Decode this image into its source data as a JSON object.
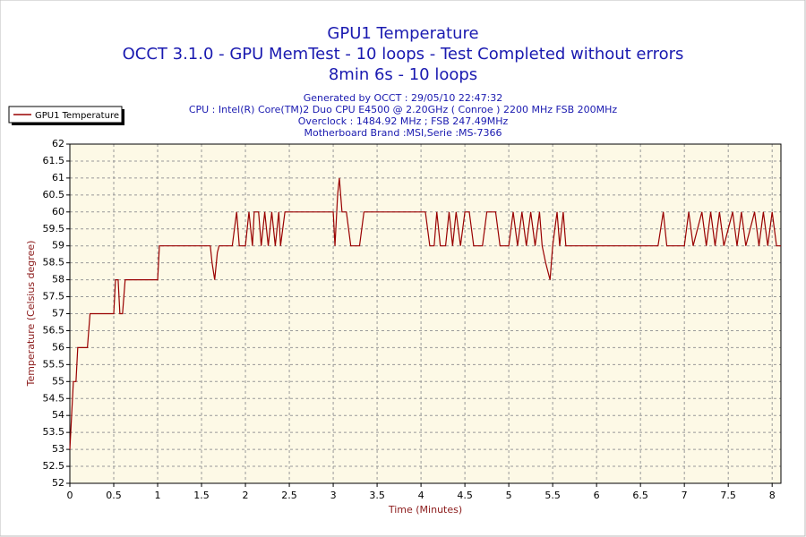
{
  "chart_data": {
    "type": "line",
    "title": "GPU1 Temperature",
    "subtitle": [
      "OCCT 3.1.0 - GPU MemTest - 10 loops - Test Completed without errors",
      "8min 6s - 10 loops"
    ],
    "notes": [
      "Generated by OCCT : 29/05/10 22:47:32",
      "CPU : Intel(R) Core(TM)2 Duo CPU E4500 @ 2.20GHz ( Conroe ) 2200 MHz FSB 200MHz",
      "Overclock : 1484.92 MHz ; FSB 247.49MHz",
      "Motherboard Brand :MSI,Serie :MS-7366"
    ],
    "x_label": "Time (Minutes)",
    "y_label": "Temperature (Celsius degree)",
    "legend": "top-left",
    "grid": true,
    "xlim": [
      0,
      8.1
    ],
    "ylim": [
      52,
      62
    ],
    "xticks": [
      0,
      0.5,
      1,
      1.5,
      2,
      2.5,
      3,
      3.5,
      4,
      4.5,
      5,
      5.5,
      6,
      6.5,
      7,
      7.5,
      8
    ],
    "yticks": [
      52,
      52.5,
      53,
      53.5,
      54,
      54.5,
      55,
      55.5,
      56,
      56.5,
      57,
      57.5,
      58,
      58.5,
      59,
      59.5,
      60,
      60.5,
      61,
      61.5,
      62
    ],
    "x": [
      0,
      0.02,
      0.04,
      0.07,
      0.09,
      0.2,
      0.23,
      0.5,
      0.52,
      0.55,
      0.57,
      0.6,
      0.63,
      1.0,
      1.02,
      1.6,
      1.62,
      1.65,
      1.68,
      1.7,
      1.85,
      1.9,
      1.93,
      2.0,
      2.04,
      2.08,
      2.1,
      2.15,
      2.18,
      2.22,
      2.26,
      2.3,
      2.34,
      2.38,
      2.4,
      2.45,
      2.5,
      3.0,
      3.02,
      3.05,
      3.07,
      3.1,
      3.15,
      3.2,
      3.3,
      3.35,
      4.05,
      4.1,
      4.15,
      4.18,
      4.22,
      4.28,
      4.32,
      4.36,
      4.4,
      4.45,
      4.5,
      4.55,
      4.6,
      4.7,
      4.75,
      4.85,
      4.9,
      5.0,
      5.05,
      5.1,
      5.15,
      5.2,
      5.25,
      5.3,
      5.35,
      5.38,
      5.42,
      5.47,
      5.5,
      5.55,
      5.58,
      5.62,
      5.65,
      6.7,
      6.76,
      6.8,
      7.0,
      7.05,
      7.1,
      7.2,
      7.25,
      7.3,
      7.35,
      7.4,
      7.45,
      7.55,
      7.6,
      7.65,
      7.7,
      7.8,
      7.85,
      7.9,
      7.95,
      8.0,
      8.05,
      8.1
    ],
    "series": [
      {
        "name": "GPU1 Temperature",
        "color": "#990000",
        "values": [
          53,
          54,
          55,
          55,
          56,
          56,
          57,
          57,
          58,
          58,
          57,
          57,
          58,
          58,
          59,
          59,
          58.5,
          58,
          58.8,
          59,
          59,
          60,
          59,
          59,
          60,
          59,
          60,
          60,
          59,
          60,
          59,
          60,
          59,
          60,
          59,
          60,
          60,
          60,
          59,
          60.5,
          61,
          60,
          60,
          59,
          59,
          60,
          60,
          59,
          59,
          60,
          59,
          59,
          60,
          59,
          60,
          59,
          60,
          60,
          59,
          59,
          60,
          60,
          59,
          59,
          60,
          59,
          60,
          59,
          60,
          59,
          60,
          59,
          58.5,
          58,
          59,
          60,
          59,
          60,
          59,
          59,
          60,
          59,
          59,
          60,
          59,
          60,
          59,
          60,
          59,
          60,
          59,
          60,
          59,
          60,
          59,
          60,
          59,
          60,
          59,
          60,
          59,
          59
        ]
      }
    ]
  }
}
